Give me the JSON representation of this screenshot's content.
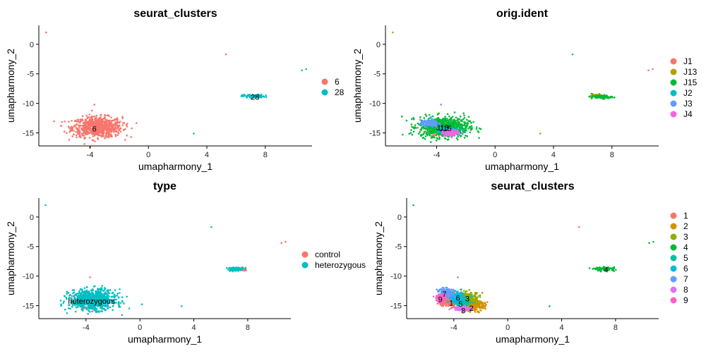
{
  "chart_data": [
    {
      "type": "scatter",
      "title": "seurat_clusters",
      "xlabel": "umapharmony_1",
      "ylabel": "umapharmony_2",
      "xlim": [
        -7.5,
        11.2
      ],
      "ylim": [
        -17.2,
        3.2
      ],
      "xticks": [
        -4,
        0,
        4,
        8
      ],
      "yticks": [
        0,
        -5,
        -10,
        -15
      ],
      "series": [
        {
          "name": "6",
          "color": "#F8766D",
          "clusters": [
            {
              "x": -3.5,
              "y": -14.0,
              "rx": 1.7,
              "ry": 1.7
            }
          ],
          "singletons": [
            [
              -7.0,
              2.0
            ],
            [
              5.3,
              -1.7
            ],
            [
              -3.7,
              -10.2
            ]
          ]
        },
        {
          "name": "28",
          "color": "#00BFC4",
          "clusters": [
            {
              "x": 7.2,
              "y": -8.8,
              "rx": 0.75,
              "ry": 0.3
            }
          ],
          "singletons": [
            [
              10.8,
              -4.2
            ],
            [
              10.5,
              -4.4
            ],
            [
              3.1,
              -15.1
            ]
          ]
        }
      ],
      "cluster_labels": [
        {
          "text": "6",
          "x": -3.7,
          "y": -14.3
        },
        {
          "text": "28",
          "x": 7.3,
          "y": -8.9
        }
      ],
      "legend": {
        "position": "right"
      }
    },
    {
      "type": "scatter",
      "title": "orig.ident",
      "xlabel": "umapharmony_1",
      "ylabel": "umapharmony_2",
      "xlim": [
        -7.5,
        11.2
      ],
      "ylim": [
        -17.2,
        3.2
      ],
      "xticks": [
        -4,
        0,
        4,
        8
      ],
      "yticks": [
        0,
        -5,
        -10,
        -15
      ],
      "series": [
        {
          "name": "J1",
          "color": "#F8766D",
          "clusters": [
            {
              "x": -3.6,
              "y": -14.2,
              "rx": 0.9,
              "ry": 1.0
            }
          ],
          "singletons": [
            [
              10.5,
              -4.4
            ]
          ]
        },
        {
          "name": "J13",
          "color": "#B79F00",
          "clusters": [
            {
              "x": 6.9,
              "y": -8.7,
              "rx": 0.4,
              "ry": 0.25
            }
          ],
          "singletons": [
            [
              -7.0,
              2.0
            ],
            [
              3.1,
              -15.1
            ]
          ]
        },
        {
          "name": "J15",
          "color": "#00BA38",
          "clusters": [
            {
              "x": -3.5,
              "y": -14.0,
              "rx": 1.7,
              "ry": 1.7
            },
            {
              "x": 7.3,
              "y": -8.9,
              "rx": 0.7,
              "ry": 0.3
            }
          ],
          "singletons": []
        },
        {
          "name": "J2",
          "color": "#00BFC4",
          "clusters": [
            {
              "x": -3.2,
              "y": -14.6,
              "rx": 0.7,
              "ry": 0.6
            }
          ],
          "singletons": [
            [
              5.3,
              -1.7
            ]
          ]
        },
        {
          "name": "J3",
          "color": "#619CFF",
          "clusters": [
            {
              "x": -4.5,
              "y": -13.4,
              "rx": 0.6,
              "ry": 0.6
            }
          ],
          "singletons": [
            [
              -3.7,
              -10.2
            ]
          ]
        },
        {
          "name": "J4",
          "color": "#F564E3",
          "clusters": [
            {
              "x": -3.0,
              "y": -15.0,
              "rx": 0.6,
              "ry": 0.5
            }
          ],
          "singletons": [
            [
              10.8,
              -4.2
            ]
          ]
        }
      ],
      "cluster_labels": [
        {
          "text": "J13",
          "x": -3.6,
          "y": -14.1
        },
        {
          "text": "J15",
          "x": -3.4,
          "y": -14.2
        }
      ],
      "legend": {
        "position": "right"
      }
    },
    {
      "type": "scatter",
      "title": "type",
      "xlabel": "umapharmony_1",
      "ylabel": "umapharmony_2",
      "xlim": [
        -7.5,
        11.2
      ],
      "ylim": [
        -17.2,
        3.2
      ],
      "xticks": [
        -4,
        0,
        4,
        8
      ],
      "yticks": [
        0,
        -5,
        -10,
        -15
      ],
      "series": [
        {
          "name": "control",
          "color": "#F8766D",
          "clusters": [
            {
              "x": -3.6,
              "y": -14.2,
              "rx": 1.0,
              "ry": 1.1
            },
            {
              "x": 7.6,
              "y": -8.9,
              "rx": 0.35,
              "ry": 0.2
            }
          ],
          "singletons": [
            [
              10.8,
              -4.2
            ],
            [
              10.5,
              -4.4
            ],
            [
              -3.7,
              -10.2
            ]
          ]
        },
        {
          "name": "heterozygous",
          "color": "#00BFC4",
          "clusters": [
            {
              "x": -3.5,
              "y": -14.0,
              "rx": 1.7,
              "ry": 1.7
            },
            {
              "x": 7.1,
              "y": -8.8,
              "rx": 0.6,
              "ry": 0.3
            }
          ],
          "singletons": [
            [
              -7.0,
              2.0
            ],
            [
              5.3,
              -1.7
            ],
            [
              3.1,
              -15.1
            ]
          ]
        }
      ],
      "cluster_labels": [
        {
          "text": "heterozygous",
          "x": -3.6,
          "y": -14.2
        }
      ],
      "legend": {
        "position": "right"
      }
    },
    {
      "type": "scatter",
      "title": "seurat_clusters",
      "xlabel": "umapharmony_1",
      "ylabel": "umapharmony_2",
      "xlim": [
        -7.5,
        11.2
      ],
      "ylim": [
        -17.2,
        3.2
      ],
      "xticks": [
        -4,
        0,
        4,
        8
      ],
      "yticks": [
        0,
        -5,
        -10,
        -15
      ],
      "series": [
        {
          "name": "1",
          "color": "#F8766D",
          "clusters": [
            {
              "x": -4.4,
              "y": -14.3,
              "rx": 0.7,
              "ry": 0.9
            }
          ],
          "singletons": []
        },
        {
          "name": "2",
          "color": "#D39200",
          "clusters": [
            {
              "x": -2.6,
              "y": -15.0,
              "rx": 0.9,
              "ry": 0.9
            }
          ],
          "singletons": []
        },
        {
          "name": "3",
          "color": "#93AA00",
          "clusters": [
            {
              "x": -3.0,
              "y": -13.7,
              "rx": 0.9,
              "ry": 1.0
            }
          ],
          "singletons": []
        },
        {
          "name": "4",
          "color": "#00BA38",
          "clusters": [
            {
              "x": 7.2,
              "y": -8.8,
              "rx": 0.75,
              "ry": 0.3
            }
          ],
          "singletons": [
            [
              -7.0,
              2.0
            ],
            [
              3.1,
              -15.1
            ],
            [
              10.8,
              -4.2
            ],
            [
              10.5,
              -4.4
            ]
          ]
        },
        {
          "name": "5",
          "color": "#00C19F",
          "clusters": [
            {
              "x": -3.4,
              "y": -14.5,
              "rx": 0.6,
              "ry": 0.5
            }
          ],
          "singletons": []
        },
        {
          "name": "6",
          "color": "#00B9E3",
          "clusters": [
            {
              "x": -3.8,
              "y": -13.6,
              "rx": 0.6,
              "ry": 0.8
            }
          ],
          "singletons": []
        },
        {
          "name": "7",
          "color": "#619CFF",
          "clusters": [
            {
              "x": -4.6,
              "y": -12.8,
              "rx": 0.6,
              "ry": 0.7
            }
          ],
          "singletons": [
            [
              -3.7,
              -10.2
            ]
          ]
        },
        {
          "name": "8",
          "color": "#DB72FB",
          "clusters": [
            {
              "x": -3.3,
              "y": -15.5,
              "rx": 0.6,
              "ry": 0.4
            }
          ],
          "singletons": []
        },
        {
          "name": "9",
          "color": "#FF61C3",
          "clusters": [
            {
              "x": -4.9,
              "y": -13.8,
              "rx": 0.4,
              "ry": 0.6
            }
          ],
          "singletons": [
            [
              5.3,
              -1.7
            ]
          ]
        }
      ],
      "cluster_labels": [
        {
          "text": "1",
          "x": -4.2,
          "y": -14.5
        },
        {
          "text": "2",
          "x": -2.7,
          "y": -15.4
        },
        {
          "text": "3",
          "x": -3.0,
          "y": -13.8
        },
        {
          "text": "4",
          "x": 7.3,
          "y": -8.9
        },
        {
          "text": "5",
          "x": -3.5,
          "y": -14.7
        },
        {
          "text": "6",
          "x": -3.7,
          "y": -13.7
        },
        {
          "text": "7",
          "x": -4.7,
          "y": -13.0
        },
        {
          "text": "8",
          "x": -3.3,
          "y": -15.8
        },
        {
          "text": "9",
          "x": -5.0,
          "y": -13.9
        }
      ],
      "legend": {
        "position": "right"
      }
    }
  ]
}
